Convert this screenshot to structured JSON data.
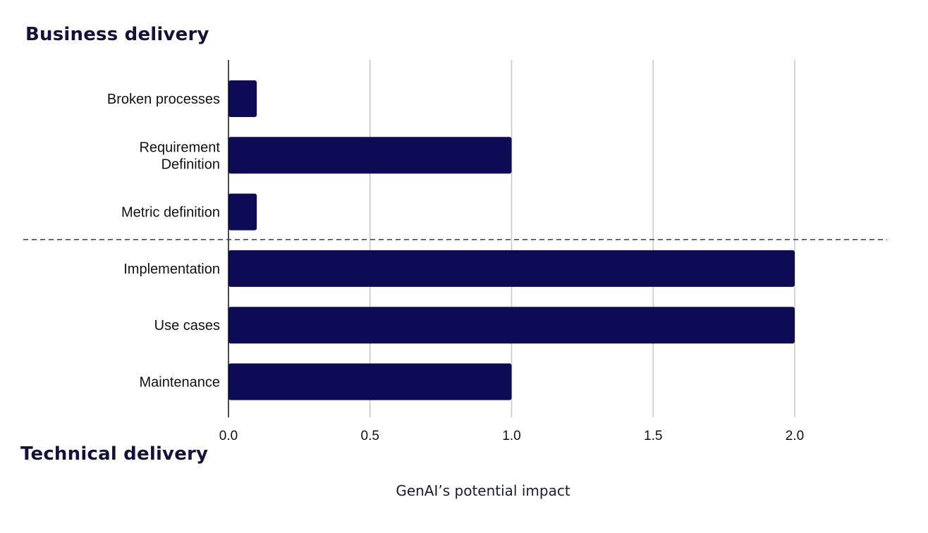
{
  "chart_data": {
    "type": "bar",
    "orientation": "horizontal",
    "categories": [
      [
        "Broken processes"
      ],
      [
        "Requirement",
        "Definition"
      ],
      [
        "Metric definition"
      ],
      [
        "Implementation"
      ],
      [
        "Use cases"
      ],
      [
        "Maintenance"
      ]
    ],
    "values": [
      0.1,
      1.0,
      0.1,
      2.0,
      2.0,
      1.0
    ],
    "groups": [
      {
        "title": "Business delivery",
        "categories": [
          0,
          1,
          2
        ]
      },
      {
        "title": "Technical delivery",
        "categories": [
          3,
          4,
          5
        ]
      }
    ],
    "xlabel": "GenAI’s potential impact",
    "ylabel": "",
    "xlim": [
      0,
      2.33
    ],
    "xticks": [
      0.0,
      0.5,
      1.0,
      1.5,
      2.0
    ],
    "xtick_labels": [
      "0.0",
      "0.5",
      "1.0",
      "1.5",
      "2.0"
    ],
    "grid": "vertical",
    "separator": "dashed line between groups"
  },
  "colors": {
    "bar": "#0d0b55",
    "grid": "#c8c8c8",
    "axis": "#111111",
    "separator": "#3a3a6a",
    "title": "#14123d"
  }
}
